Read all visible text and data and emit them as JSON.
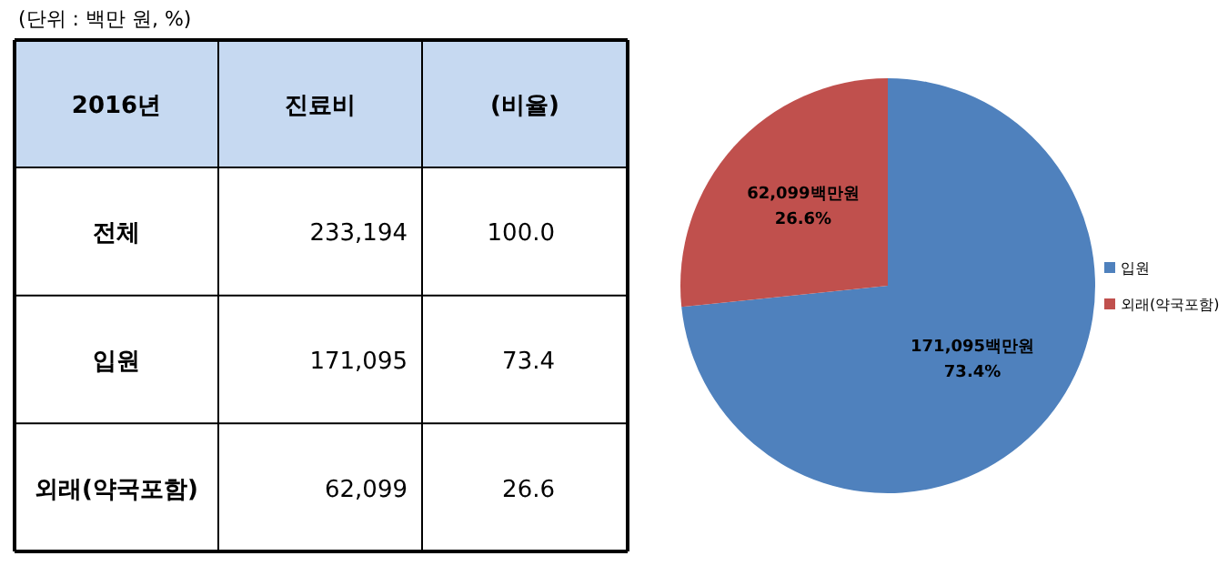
{
  "chart_data": [
    {
      "type": "other",
      "title": "(단위 : 백만 원, %)",
      "annotations": [
        "2016년",
        "진료비",
        "(비율)",
        "전체",
        "233,194",
        "100.0",
        "입원",
        "171,095",
        "73.4",
        "외래(약국포함)",
        "62,099",
        "26.6"
      ]
    },
    {
      "type": "pie",
      "categories": [
        "입원",
        "외래(약국포함)"
      ],
      "values": [
        171095,
        62099
      ],
      "colors": [
        "#4f81bd",
        "#c0504d"
      ],
      "value_labels": [
        "171,095백만원\n73.4%",
        "62,099백만원\n26.6%"
      ],
      "legend": "right"
    }
  ]
}
